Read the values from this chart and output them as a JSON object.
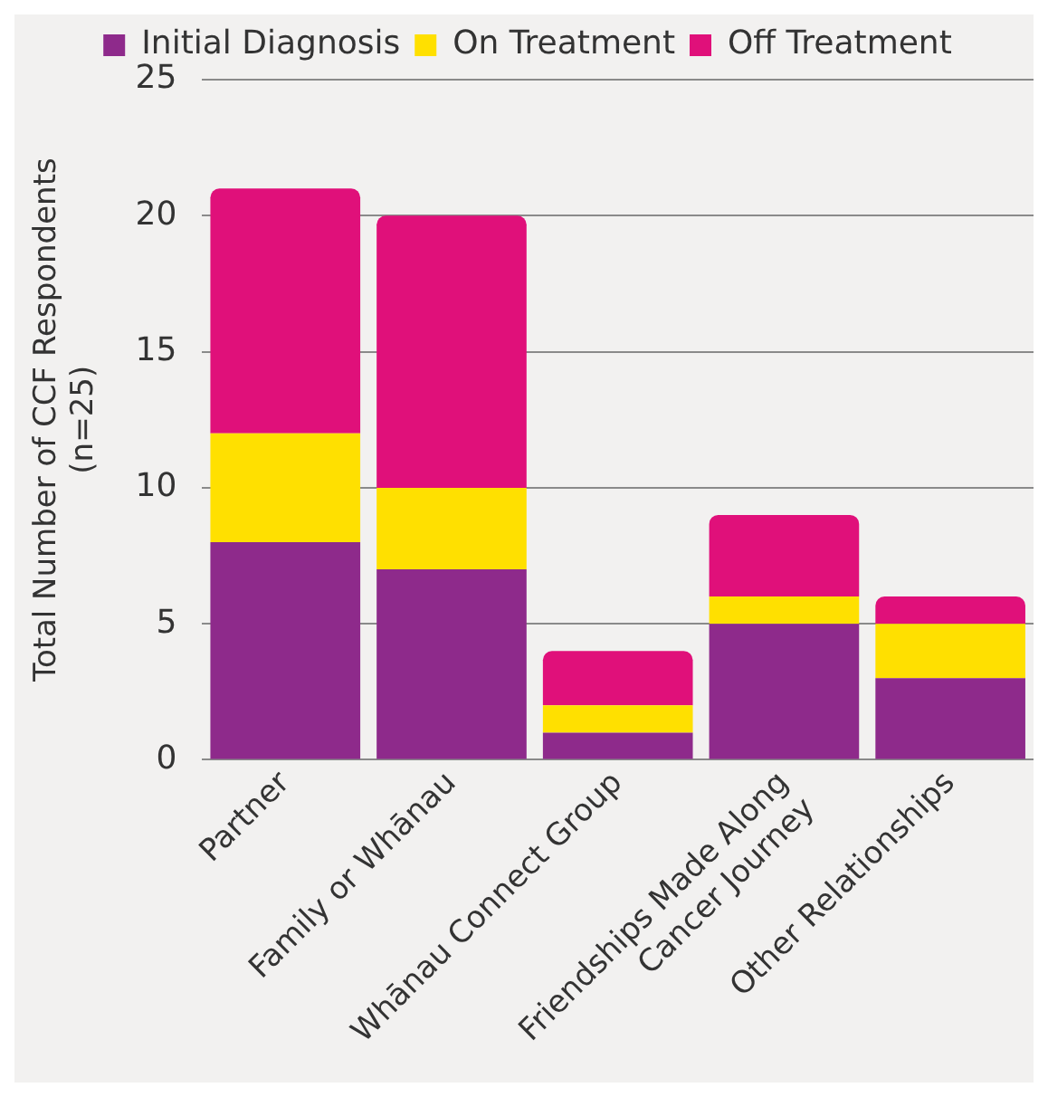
{
  "chart_data": {
    "type": "bar",
    "stacked": true,
    "ylabel": "Total Number of CCF Respondents\n(n=25)",
    "categories": [
      "Partner",
      "Family or Whānau",
      "Whānau Connect Group",
      "Friendships Made Along\nCancer Journey",
      "Other Relationships"
    ],
    "series": [
      {
        "name": "Initial Diagnosis",
        "color": "#8e2a8b",
        "values": [
          8,
          7,
          1,
          5,
          3
        ]
      },
      {
        "name": "On Treatment",
        "color": "#ffe000",
        "values": [
          4,
          3,
          1,
          1,
          2
        ]
      },
      {
        "name": "Off Treatment",
        "color": "#e0107a",
        "values": [
          9,
          10,
          2,
          3,
          1
        ]
      }
    ],
    "ylim": [
      0,
      25
    ],
    "yticks": [
      0,
      5,
      10,
      15,
      20,
      25
    ],
    "grid": "y",
    "legend": "top"
  }
}
